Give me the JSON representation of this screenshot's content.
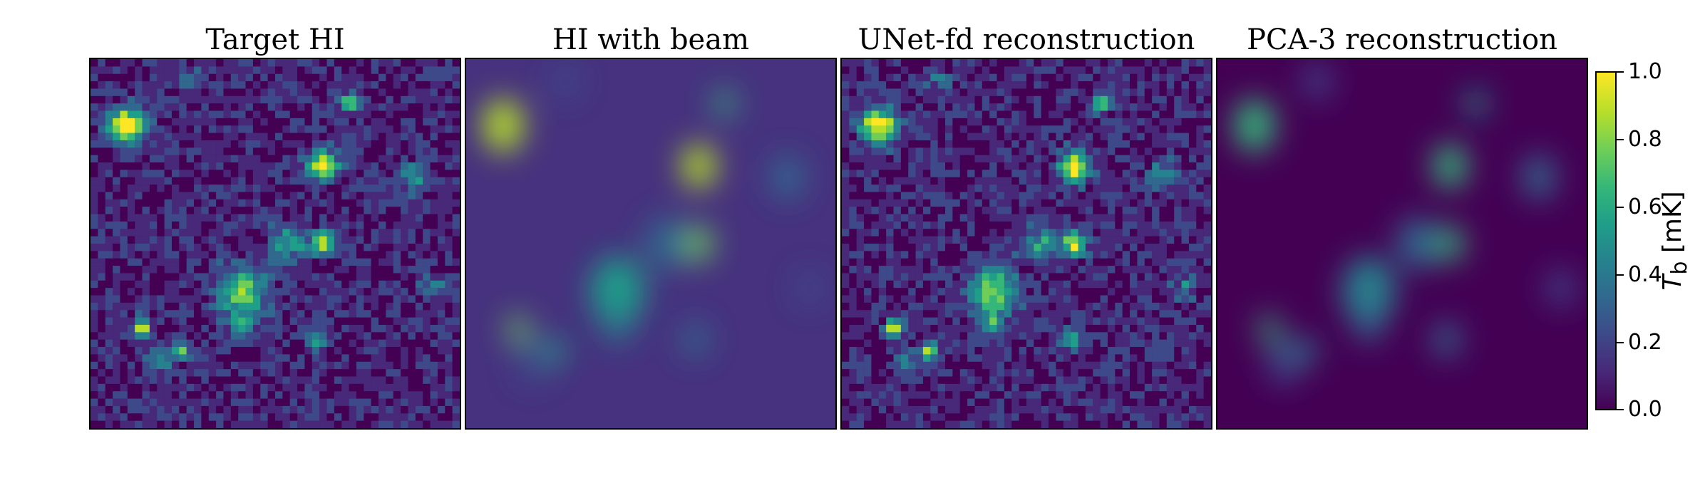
{
  "chart_data": {
    "type": "heatmap",
    "panels": [
      {
        "title": "Target HI",
        "style": "sharp"
      },
      {
        "title": "HI with beam",
        "style": "smooth"
      },
      {
        "title": "UNet-fd reconstruction",
        "style": "sharp"
      },
      {
        "title": "PCA-3 reconstruction",
        "style": "smooth"
      }
    ],
    "colormap": "viridis",
    "colorbar": {
      "label_symbol": "T",
      "label_subscript": "b",
      "label_unit": "[mK]",
      "range": [
        0.0,
        1.0
      ],
      "ticks": [
        "1.0",
        "0.8",
        "0.6",
        "0.4",
        "0.2",
        "0.0"
      ]
    },
    "sources": [
      {
        "x": 0.1,
        "y": 0.18,
        "v": 1.0,
        "r": 0.06
      },
      {
        "x": 0.63,
        "y": 0.29,
        "v": 1.0,
        "r": 0.05
      },
      {
        "x": 0.54,
        "y": 0.5,
        "v": 0.45,
        "r": 0.06
      },
      {
        "x": 0.41,
        "y": 0.63,
        "v": 0.7,
        "r": 0.08
      },
      {
        "x": 0.63,
        "y": 0.5,
        "v": 0.9,
        "r": 0.04
      },
      {
        "x": 0.41,
        "y": 0.72,
        "v": 0.5,
        "r": 0.04
      },
      {
        "x": 0.14,
        "y": 0.73,
        "v": 0.9,
        "r": 0.03
      },
      {
        "x": 0.24,
        "y": 0.79,
        "v": 0.7,
        "r": 0.03
      },
      {
        "x": 0.87,
        "y": 0.32,
        "v": 0.4,
        "r": 0.05
      },
      {
        "x": 0.7,
        "y": 0.12,
        "v": 0.8,
        "r": 0.03
      },
      {
        "x": 0.27,
        "y": 0.06,
        "v": 0.3,
        "r": 0.04
      },
      {
        "x": 0.18,
        "y": 0.82,
        "v": 0.3,
        "r": 0.05
      },
      {
        "x": 0.62,
        "y": 0.76,
        "v": 0.4,
        "r": 0.04
      },
      {
        "x": 0.93,
        "y": 0.62,
        "v": 0.3,
        "r": 0.04
      }
    ]
  }
}
